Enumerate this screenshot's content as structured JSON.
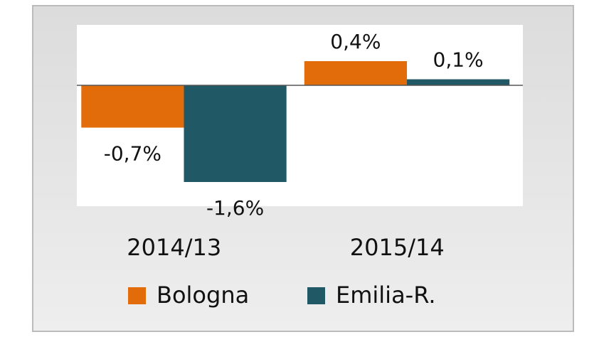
{
  "chart_data": {
    "type": "bar",
    "categories": [
      "2014/13",
      "2015/14"
    ],
    "series": [
      {
        "name": "Bologna",
        "color": "#e36c0a",
        "values": [
          -0.7,
          0.4
        ],
        "value_labels": [
          "-0,7%",
          "0,4%"
        ]
      },
      {
        "name": "Emilia-R.",
        "color": "#215866",
        "values": [
          -1.6,
          0.1
        ],
        "value_labels": [
          "-1,6%",
          "0,1%"
        ]
      }
    ],
    "ylim": [
      -2,
      1
    ]
  }
}
